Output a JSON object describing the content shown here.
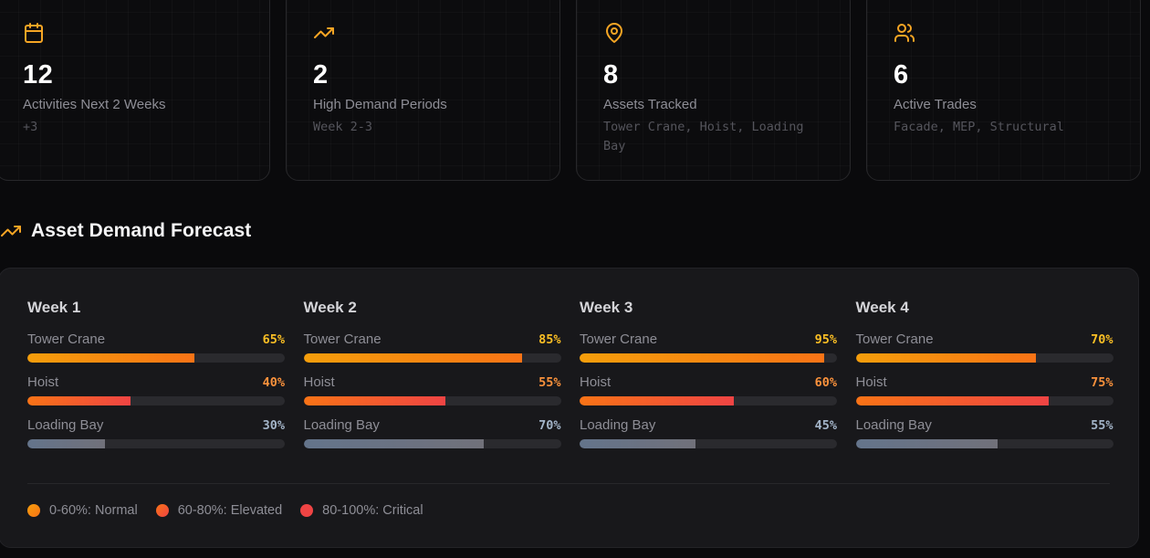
{
  "stats": [
    {
      "icon": "calendar-icon",
      "value": "12",
      "label": "Activities Next 2 Weeks",
      "sub": "+3"
    },
    {
      "icon": "trending-up-icon",
      "value": "2",
      "label": "High Demand Periods",
      "sub": "Week 2-3"
    },
    {
      "icon": "map-pin-icon",
      "value": "8",
      "label": "Assets Tracked",
      "sub": "Tower Crane, Hoist, Loading Bay"
    },
    {
      "icon": "users-icon",
      "value": "6",
      "label": "Active Trades",
      "sub": "Facade, MEP, Structural"
    }
  ],
  "section": {
    "icon": "trending-up-icon",
    "title": "Asset Demand Forecast"
  },
  "forecast": {
    "weeks": [
      {
        "title": "Week 1",
        "assets": [
          {
            "name": "Tower Crane",
            "value": 65,
            "label": "65%"
          },
          {
            "name": "Hoist",
            "value": 40,
            "label": "40%"
          },
          {
            "name": "Loading Bay",
            "value": 30,
            "label": "30%"
          }
        ]
      },
      {
        "title": "Week 2",
        "assets": [
          {
            "name": "Tower Crane",
            "value": 85,
            "label": "85%"
          },
          {
            "name": "Hoist",
            "value": 55,
            "label": "55%"
          },
          {
            "name": "Loading Bay",
            "value": 70,
            "label": "70%"
          }
        ]
      },
      {
        "title": "Week 3",
        "assets": [
          {
            "name": "Tower Crane",
            "value": 95,
            "label": "95%"
          },
          {
            "name": "Hoist",
            "value": 60,
            "label": "60%"
          },
          {
            "name": "Loading Bay",
            "value": 45,
            "label": "45%"
          }
        ]
      },
      {
        "title": "Week 4",
        "assets": [
          {
            "name": "Tower Crane",
            "value": 70,
            "label": "70%"
          },
          {
            "name": "Hoist",
            "value": 75,
            "label": "75%"
          },
          {
            "name": "Loading Bay",
            "value": 55,
            "label": "55%"
          }
        ]
      }
    ],
    "legend": [
      {
        "label": "0-60%: Normal",
        "color": "#f59e0b",
        "color2": "#f97316"
      },
      {
        "label": "60-80%: Elevated",
        "color": "#f97316",
        "color2": "#ef4444"
      },
      {
        "label": "80-100%: Critical",
        "color": "#ef4444",
        "color2": "#ef4444"
      }
    ]
  },
  "colors": {
    "accent": "#f5a524",
    "crane_pct": "#fbbf24",
    "hoist_pct": "#fb923c",
    "bay_pct": "#a3b4c8",
    "panel_bg": "#18181b",
    "page_bg": "#0a0a0c"
  }
}
